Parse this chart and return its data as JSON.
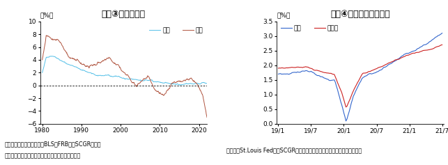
{
  "chart1": {
    "title": "図表③　実質金利",
    "ylabel": "（%）",
    "xlim": [
      1979.5,
      2022
    ],
    "ylim": [
      -6,
      10
    ],
    "yticks": [
      -6,
      -4,
      -2,
      0,
      2,
      4,
      6,
      8,
      10
    ],
    "xticks": [
      1980,
      1990,
      2000,
      2010,
      2020
    ],
    "legend": [
      "日本",
      "米国"
    ],
    "color_japan": "#55c0e8",
    "color_usa": "#b05540",
    "footnote1": "（出所：総務省、財務省、BLS、FRBよりSCGR作成）",
    "footnote2": "（注）２年債金利を消費者物価上昇率で実質化した"
  },
  "chart2": {
    "title": "図表④　期待インフレ率",
    "ylabel": "（%）",
    "ylim": [
      0,
      3.5
    ],
    "yticks": [
      0,
      0.5,
      1.0,
      1.5,
      2.0,
      2.5,
      3.0,
      3.5
    ],
    "xtick_labels": [
      "19/1",
      "19/7",
      "20/1",
      "20/7",
      "21/1",
      "21/7"
    ],
    "legend": [
      "５年",
      "１０年"
    ],
    "color_5y": "#3366cc",
    "color_10y": "#cc2222",
    "footnote": "（出所：St.Louis FedよりSCGR作成）　（注）ブレークイーブンインフレ率"
  },
  "background_color": "#ffffff",
  "title_fontsize": 9,
  "label_fontsize": 6.5,
  "tick_fontsize": 6.5,
  "footnote_fontsize": 5.8
}
